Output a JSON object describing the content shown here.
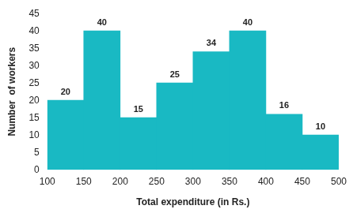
{
  "chart_data": {
    "type": "histogram",
    "x_label": "Total expenditure (in Rs.)",
    "y_label": "Number  of workers",
    "bins": [
      100,
      150,
      200,
      250,
      300,
      350,
      400,
      450,
      500
    ],
    "values": [
      20,
      40,
      15,
      25,
      34,
      40,
      16,
      10
    ],
    "color": "#19b9c3",
    "xlim": [
      100,
      500
    ],
    "xticks": [
      100,
      150,
      200,
      250,
      300,
      350,
      400,
      450,
      500
    ],
    "ylim": [
      0,
      45
    ],
    "yticks": [
      0,
      5,
      10,
      15,
      20,
      25,
      30,
      35,
      40,
      45
    ],
    "grid": false,
    "data_labels": true
  }
}
